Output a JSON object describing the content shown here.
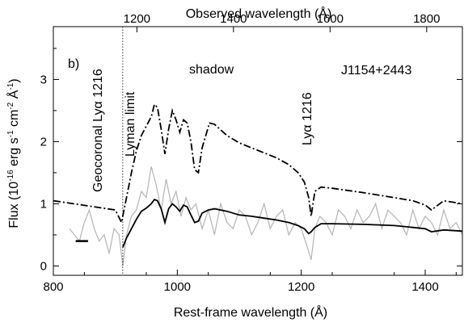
{
  "chart_data": {
    "type": "line",
    "panel_label": "b)",
    "object_name": "J1154+2443",
    "xlabel": "Rest-frame wavelength (Å)",
    "ylabel": "Flux (10",
    "ylabel_exp1": "-16",
    "ylabel_mid1": " erg s",
    "ylabel_exp2": "-1",
    "ylabel_mid2": " cm",
    "ylabel_exp3": "-2",
    "ylabel_mid3": " Å",
    "ylabel_exp4": "-1",
    "ylabel_end": ")",
    "top_xlabel": "Observed wavelength (Å)",
    "xlim": [
      800,
      1460
    ],
    "ylim": [
      -0.15,
      3.85
    ],
    "top_xlim": [
      1027,
      1874
    ],
    "x_ticks": [
      800,
      1000,
      1200,
      1400
    ],
    "x_tick_labels": [
      "800",
      "1000",
      "1200",
      "1400"
    ],
    "y_ticks": [
      0,
      1,
      2,
      3
    ],
    "y_tick_labels": [
      "0",
      "1",
      "2",
      "3"
    ],
    "top_x_ticks": [
      1200,
      1400,
      1600,
      1800
    ],
    "top_x_tick_labels": [
      "1200",
      "1400",
      "1600",
      "1800"
    ],
    "annotations": {
      "geocoronal": "Geocoronal Lyα 1216",
      "lyman_limit": "Lyman limit",
      "shadow": "shadow",
      "lya": "Lyα 1216"
    },
    "lyman_limit_x": 912,
    "colors": {
      "observed": "#b4b4b4",
      "model": "#000000"
    },
    "series": [
      {
        "role": "observed",
        "style": "gray-noisy",
        "x": [
          826,
          834,
          842,
          850,
          858,
          866,
          874,
          882,
          890,
          898,
          906,
          912,
          918,
          926,
          934,
          942,
          950,
          958,
          966,
          974,
          982,
          990,
          998,
          1006,
          1014,
          1022,
          1030,
          1040,
          1050,
          1060,
          1070,
          1080,
          1090,
          1100,
          1110,
          1120,
          1130,
          1140,
          1150,
          1160,
          1170,
          1180,
          1190,
          1200,
          1210,
          1216,
          1222,
          1230,
          1240,
          1250,
          1260,
          1270,
          1280,
          1290,
          1300,
          1310,
          1320,
          1330,
          1340,
          1350,
          1360,
          1370,
          1380,
          1390,
          1400,
          1410,
          1420,
          1430,
          1440,
          1450,
          1460
        ],
        "y": [
          0.6,
          0.5,
          0.4,
          0.7,
          0.9,
          0.6,
          0.4,
          0.5,
          0.2,
          0.6,
          0.5,
          0.0,
          0.5,
          0.8,
          0.9,
          1.2,
          1.1,
          1.6,
          1.3,
          0.9,
          1.4,
          1.0,
          1.2,
          0.8,
          1.1,
          0.9,
          1.0,
          0.6,
          0.9,
          0.5,
          1.0,
          0.7,
          0.6,
          0.9,
          0.8,
          0.5,
          0.7,
          1.0,
          0.6,
          0.8,
          0.9,
          0.5,
          0.7,
          0.6,
          0.3,
          0.1,
          0.6,
          0.8,
          0.7,
          0.5,
          0.9,
          0.8,
          0.6,
          0.9,
          0.7,
          0.8,
          1.0,
          0.6,
          0.9,
          0.8,
          0.7,
          0.5,
          0.9,
          0.6,
          0.8,
          0.7,
          0.5,
          0.9,
          0.6,
          0.7,
          0.5
        ]
      },
      {
        "role": "model-unattenuated",
        "style": "dash-dot",
        "x": [
          800,
          820,
          840,
          860,
          880,
          900,
          910,
          918,
          926,
          934,
          942,
          950,
          958,
          963,
          968,
          974,
          980,
          986,
          992,
          998,
          1004,
          1010,
          1016,
          1022,
          1028,
          1034,
          1040,
          1046,
          1052,
          1060,
          1080,
          1100,
          1120,
          1140,
          1160,
          1180,
          1195,
          1205,
          1212,
          1216,
          1222,
          1232,
          1250,
          1300,
          1350,
          1380,
          1400,
          1410,
          1430,
          1460
        ],
        "y": [
          1.05,
          1.02,
          0.99,
          0.96,
          0.93,
          0.9,
          0.7,
          1.1,
          1.5,
          1.85,
          2.1,
          2.25,
          2.4,
          2.6,
          2.55,
          2.2,
          1.8,
          2.2,
          2.5,
          2.35,
          2.15,
          2.35,
          2.3,
          2.0,
          1.55,
          1.5,
          1.9,
          2.1,
          2.3,
          2.28,
          2.1,
          1.98,
          1.9,
          1.82,
          1.74,
          1.63,
          1.5,
          1.35,
          1.1,
          0.8,
          1.2,
          1.27,
          1.25,
          1.18,
          1.1,
          1.05,
          0.98,
          0.9,
          1.05,
          1.0
        ]
      },
      {
        "role": "model-attenuated",
        "style": "solid",
        "x": [
          912,
          918,
          926,
          934,
          942,
          950,
          958,
          963,
          968,
          974,
          980,
          986,
          992,
          998,
          1004,
          1010,
          1016,
          1022,
          1028,
          1034,
          1040,
          1050,
          1060,
          1080,
          1100,
          1120,
          1140,
          1160,
          1180,
          1195,
          1205,
          1212,
          1216,
          1222,
          1232,
          1250,
          1300,
          1350,
          1380,
          1400,
          1410,
          1430,
          1460
        ],
        "y": [
          0.3,
          0.45,
          0.6,
          0.75,
          0.88,
          0.93,
          1.0,
          1.07,
          1.05,
          0.92,
          0.7,
          0.92,
          1.0,
          0.95,
          0.88,
          0.98,
          0.95,
          0.82,
          0.7,
          0.72,
          0.85,
          0.9,
          0.92,
          0.88,
          0.82,
          0.8,
          0.77,
          0.74,
          0.7,
          0.65,
          0.6,
          0.52,
          0.55,
          0.62,
          0.68,
          0.68,
          0.67,
          0.65,
          0.62,
          0.6,
          0.55,
          0.58,
          0.56
        ]
      },
      {
        "role": "short-bar",
        "style": "solid-thick",
        "x": [
          836,
          856
        ],
        "y": [
          0.4,
          0.4
        ]
      }
    ]
  }
}
